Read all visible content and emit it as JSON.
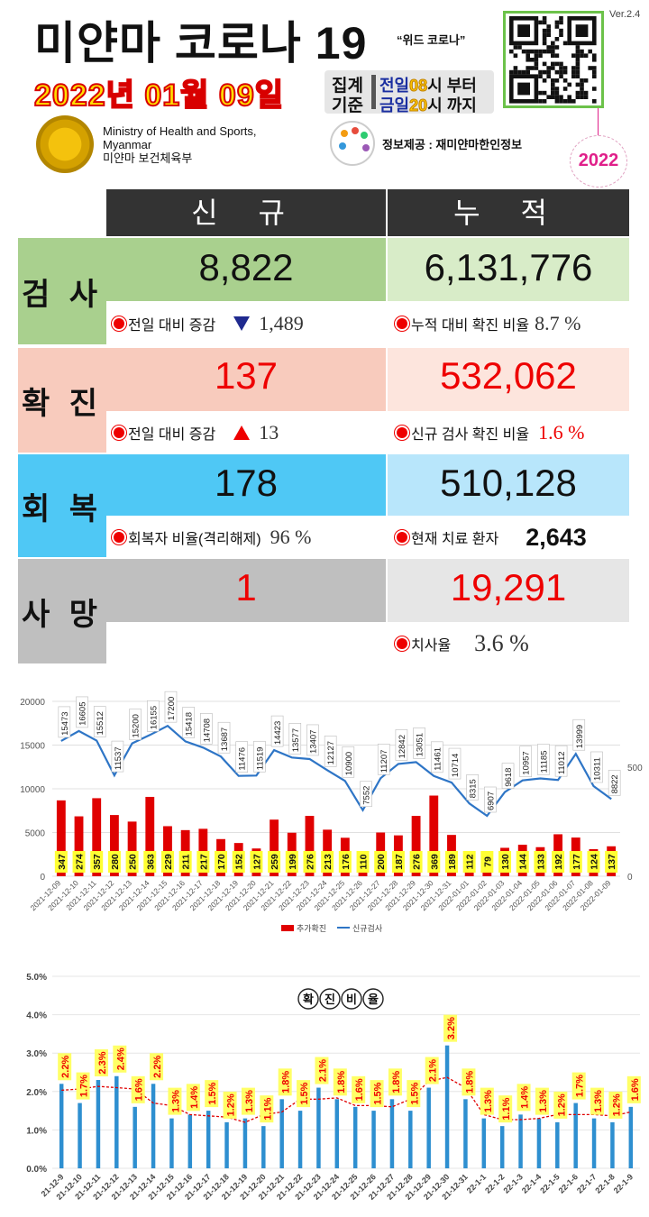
{
  "header": {
    "title": "미얀마 코로나 19",
    "subtitle": "“위드 코로나”",
    "date": "2022년 01월 09일",
    "period_label_1": "집계",
    "period_label_2": "기준",
    "period_line_1_a": "전일",
    "period_line_1_b": "08",
    "period_line_1_c": "시 부터",
    "period_line_2_a": "금일",
    "period_line_2_b": "20",
    "period_line_2_c": "시 까지",
    "version": "Ver.2.4",
    "ministry_en_1": "Ministry of Health and Sports,",
    "ministry_en_2": "Myanmar",
    "ministry_ko": "미얀마 보건체육부",
    "info_source": "정보제공 : 재미얀마한인정보",
    "year_badge": "2022"
  },
  "table": {
    "col_new": "신 규",
    "col_total": "누 적",
    "rows": {
      "test": {
        "label": "검 사",
        "new": "8,822",
        "total": "6,131,776",
        "sub_left_label": "전일 대비 증감",
        "sub_left_value": "1,489",
        "sub_left_trend": "down",
        "sub_right_label": "누적 대비 확진 비율",
        "sub_right_value": "8.7 %",
        "cat_color": "#a9d08e",
        "new_color": "#a9d08e",
        "total_color": "#d8ecc8"
      },
      "confirmed": {
        "label": "확 진",
        "new": "137",
        "total": "532,062",
        "sub_left_label": "전일 대비 증감",
        "sub_left_value": "13",
        "sub_left_trend": "up",
        "sub_right_label": "신규 검사 확진 비율",
        "sub_right_value": "1.6 %",
        "cat_color": "#f8cbbd",
        "new_color": "#f8cbbd",
        "total_color": "#fde5dd"
      },
      "recovered": {
        "label": "회 복",
        "new": "178",
        "total": "510,128",
        "sub_left_label": "회복자 비율(격리해제)",
        "sub_left_value": "96 %",
        "sub_right_label": "현재 치료 환자",
        "sub_right_value": "2,643",
        "cat_color": "#4fc8f5",
        "new_color": "#4fc8f5",
        "total_color": "#b8e6fb"
      },
      "death": {
        "label": "사 망",
        "new": "1",
        "total": "19,291",
        "sub_right_label": "치사율",
        "sub_right_value": "3.6 %",
        "cat_color": "#bfbfbf",
        "new_color": "#bfbfbf",
        "total_color": "#e6e6e6"
      }
    }
  },
  "chart_data": [
    {
      "type": "bar",
      "categories": [
        "2021-12-09",
        "2021-12-10",
        "2021-12-11",
        "2021-12-12",
        "2021-12-13",
        "2021-12-14",
        "2021-12-15",
        "2021-12-16",
        "2021-12-17",
        "2021-12-18",
        "2021-12-19",
        "2021-12-20",
        "2021-12-21",
        "2021-12-22",
        "2021-12-23",
        "2021-12-24",
        "2021-12-25",
        "2021-12-26",
        "2021-12-27",
        "2021-12-28",
        "2021-12-29",
        "2021-12-30",
        "2021-12-31",
        "2022-01-01",
        "2022-01-02",
        "2022-01-03",
        "2022-01-04",
        "2022-01-05",
        "2022-01-06",
        "2022-01-07",
        "2022-01-08",
        "2022-01-09"
      ],
      "series": [
        {
          "name": "추가확진",
          "type": "bar",
          "axis": "right",
          "color": "#e00000",
          "values": [
            347,
            274,
            357,
            280,
            250,
            363,
            229,
            211,
            217,
            170,
            152,
            127,
            259,
            199,
            276,
            213,
            176,
            110,
            200,
            187,
            276,
            369,
            189,
            112,
            79,
            130,
            144,
            133,
            192,
            177,
            124,
            137
          ]
        },
        {
          "name": "신규검사",
          "type": "line",
          "axis": "left",
          "color": "#2e75c6",
          "values": [
            15473,
            16605,
            15512,
            11537,
            15200,
            16155,
            17200,
            15418,
            14708,
            13687,
            11476,
            11519,
            14423,
            13577,
            13407,
            12127,
            10900,
            7552,
            11207,
            12842,
            13051,
            11461,
            10714,
            8315,
            6907,
            9618,
            10957,
            11185,
            11012,
            13999,
            10311,
            8822
          ]
        }
      ],
      "ylim_left": [
        0,
        20000
      ],
      "yticks_left": [
        "0",
        "5000",
        "10000",
        "15000",
        "20000"
      ],
      "ylim_right": [
        0,
        800
      ],
      "yticks_right": [
        "0",
        "500"
      ],
      "legend": "bottom",
      "grid": true
    },
    {
      "type": "bar",
      "title": "확진비율",
      "categories": [
        "21-12-9",
        "21-12-10",
        "21-12-11",
        "21-12-12",
        "21-12-13",
        "21-12-14",
        "21-12-15",
        "21-12-16",
        "21-12-17",
        "21-12-18",
        "21-12-19",
        "21-12-20",
        "21-12-21",
        "21-12-22",
        "21-12-23",
        "21-12-24",
        "21-12-25",
        "21-12-26",
        "21-12-27",
        "21-12-28",
        "21-12-29",
        "21-12-30",
        "21-12-31",
        "22-1-1",
        "22-1-2",
        "22-1-3",
        "22-1-4",
        "22-1-5",
        "22-1-6",
        "22-1-7",
        "22-1-8",
        "22-1-9"
      ],
      "values": [
        2.2,
        1.7,
        2.3,
        2.4,
        1.6,
        2.2,
        1.3,
        1.4,
        1.5,
        1.2,
        1.3,
        1.1,
        1.8,
        1.5,
        2.1,
        1.8,
        1.6,
        1.5,
        1.8,
        1.5,
        2.1,
        3.2,
        1.8,
        1.3,
        1.1,
        1.4,
        1.3,
        1.2,
        1.7,
        1.3,
        1.2,
        1.6
      ],
      "value_labels": [
        "2.2%",
        "1.7%",
        "2.3%",
        "2.4%",
        "1.6%",
        "2.2%",
        "1.3%",
        "1.4%",
        "1.5%",
        "1.2%",
        "1.3%",
        "1.1%",
        "1.8%",
        "1.5%",
        "2.1%",
        "1.8%",
        "1.6%",
        "1.5%",
        "1.8%",
        "1.5%",
        "2.1%",
        "3.2%",
        "1.8%",
        "1.3%",
        "1.1%",
        "1.4%",
        "1.3%",
        "1.2%",
        "1.7%",
        "1.3%",
        "1.2%",
        "1.6%"
      ],
      "ylim": [
        0,
        5
      ],
      "yticks": [
        "0.0%",
        "1.0%",
        "2.0%",
        "3.0%",
        "4.0%",
        "5.0%"
      ],
      "bar_color": "#2e8fd0",
      "trend_color": "#e00000",
      "grid": true
    }
  ]
}
